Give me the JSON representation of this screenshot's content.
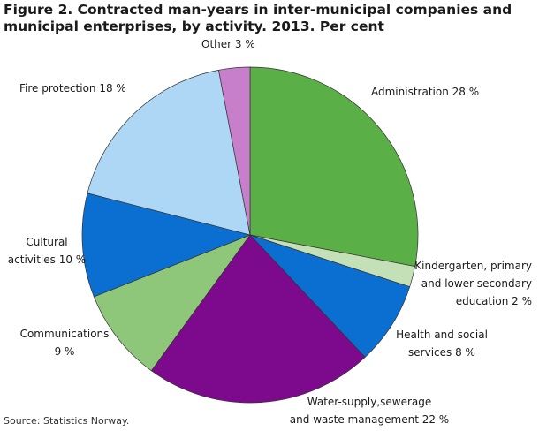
{
  "chart_data": {
    "type": "pie",
    "title": "Figure 2. Contracted man-years in inter-municipal companies and municipal enterprises, by activity. 2013. Per cent",
    "categories": [
      "Administration 28 %",
      "Kindergarten, primary\nand lower secondary\neducation 2 %",
      "Health and social\nservices 8 %",
      "Water-supply,sewerage\nand waste management 22 %",
      "Communications\n9 %",
      "Cultural\nactivities 10 %",
      "Fire protection 18 %",
      "Other 3 %"
    ],
    "values": [
      28,
      2,
      8,
      22,
      9,
      10,
      18,
      3
    ],
    "colors": [
      "#5aaf46",
      "#c3e0b6",
      "#0a6fd0",
      "#7d0a8c",
      "#8fc77a",
      "#0a6fd0",
      "#aed6f5",
      "#c77fcc"
    ],
    "source": "Source: Statistics Norway."
  }
}
